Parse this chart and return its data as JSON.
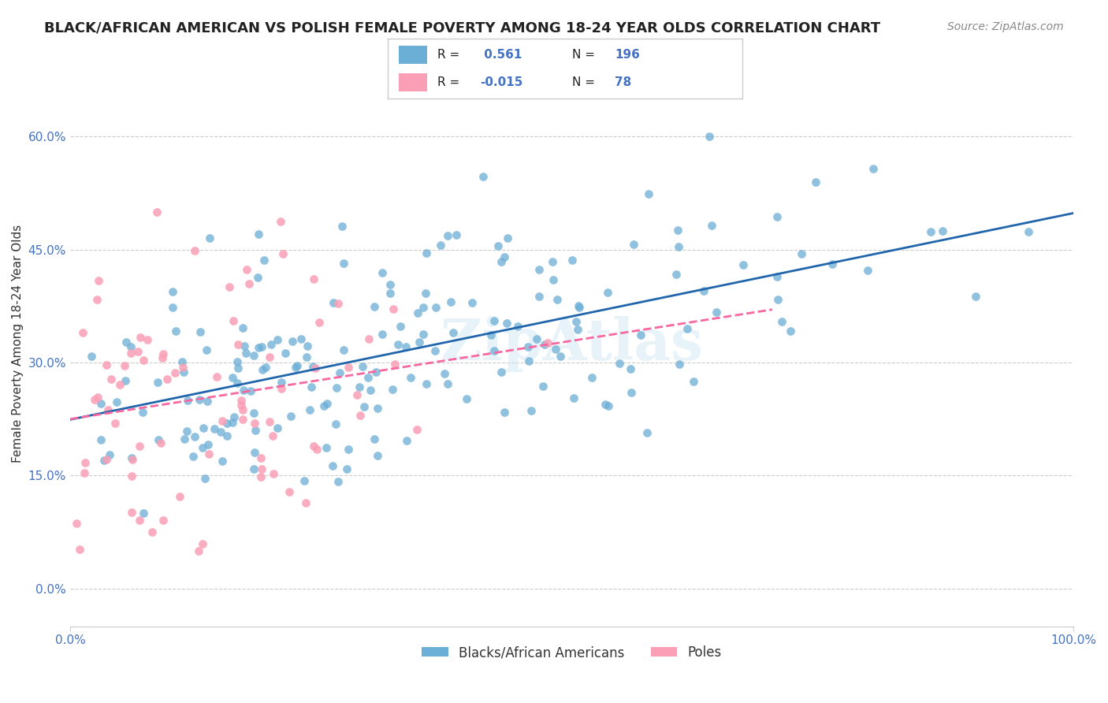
{
  "title": "BLACK/AFRICAN AMERICAN VS POLISH FEMALE POVERTY AMONG 18-24 YEAR OLDS CORRELATION CHART",
  "source": "Source: ZipAtlas.com",
  "xlabel": "",
  "ylabel": "Female Poverty Among 18-24 Year Olds",
  "xlim": [
    0,
    1.0
  ],
  "ylim": [
    -0.05,
    0.7
  ],
  "yticks": [
    0.0,
    0.15,
    0.3,
    0.45,
    0.6
  ],
  "ytick_labels": [
    "0.0%",
    "15.0%",
    "30.0%",
    "45.0%",
    "60.0%"
  ],
  "xticks": [
    0.0,
    1.0
  ],
  "xtick_labels": [
    "0.0%",
    "100.0%"
  ],
  "blue_color": "#6baed6",
  "pink_color": "#fa9fb5",
  "blue_line_color": "#2166ac",
  "pink_line_color": "#f768a1",
  "grid_color": "#cccccc",
  "background_color": "#ffffff",
  "legend_label_blue": "Blacks/African Americans",
  "legend_label_pink": "Poles",
  "R_blue": 0.561,
  "N_blue": 196,
  "R_pink": -0.015,
  "N_pink": 78,
  "watermark": "ZipAtlas",
  "title_fontsize": 13,
  "axis_label_fontsize": 11,
  "tick_label_fontsize": 11,
  "legend_fontsize": 12,
  "source_fontsize": 10
}
